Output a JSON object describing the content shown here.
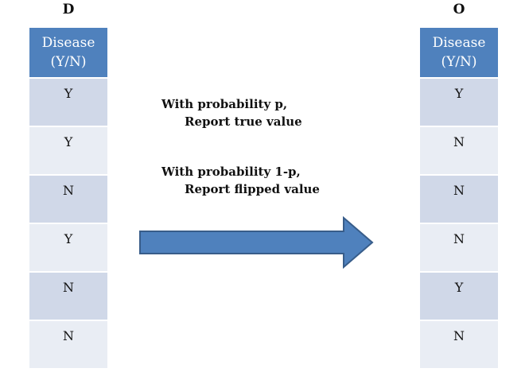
{
  "left_table": {
    "title": "D",
    "header": [
      "Disease",
      "(Y/N)"
    ],
    "rows": [
      "Y",
      "Y",
      "N",
      "Y",
      "N",
      "N"
    ]
  },
  "right_table": {
    "title": "O",
    "header": [
      "Disease",
      "(Y/N)"
    ],
    "rows": [
      "Y",
      "N",
      "N",
      "N",
      "Y",
      "N"
    ]
  },
  "rule_1": {
    "line1": "With probability p,",
    "line2": "Report true  value"
  },
  "rule_2": {
    "line1": "With probability 1-p,",
    "line2": "Report flipped value"
  },
  "colors": {
    "header_fill": "#4f81bd",
    "row_odd": "#d0d8e8",
    "row_even": "#e9edf4",
    "arrow_fill": "#4f81bd",
    "arrow_stroke": "#385d8a"
  }
}
